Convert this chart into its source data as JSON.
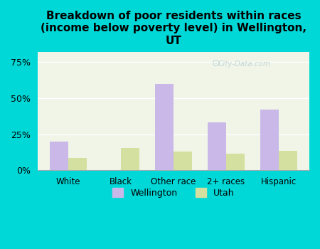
{
  "title": "Breakdown of poor residents within races\n(income below poverty level) in Wellington,\nUT",
  "categories": [
    "White",
    "Black",
    "Other race",
    "2+ races",
    "Hispanic"
  ],
  "wellington_values": [
    0.2,
    0.0,
    0.6,
    0.33,
    0.42
  ],
  "utah_values": [
    0.085,
    0.155,
    0.13,
    0.115,
    0.135
  ],
  "wellington_color": "#c9b8e8",
  "utah_color": "#d4e0a0",
  "background_color": "#00d8d8",
  "plot_bg_color": "#f0f5e8",
  "yticks": [
    0,
    0.25,
    0.5,
    0.75
  ],
  "ytick_labels": [
    "0%",
    "25%",
    "50%",
    "75%"
  ],
  "ylim": [
    0,
    0.82
  ],
  "bar_width": 0.35,
  "legend_wellington": "Wellington",
  "legend_utah": "Utah",
  "watermark": "City-Data.com"
}
